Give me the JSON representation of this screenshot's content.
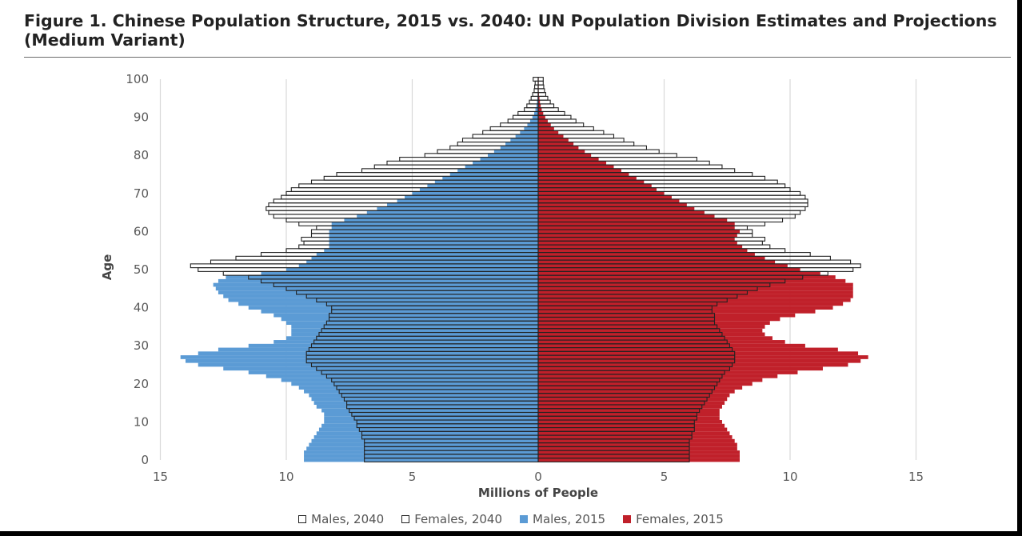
{
  "chart_data": {
    "type": "bar",
    "orientation": "horizontal",
    "layout": "population-pyramid",
    "title": "Figure 1. Chinese Population Structure, 2015 vs. 2040: UN Population Division Estimates and Projections (Medium Variant)",
    "xlabel": "Millions of People",
    "ylabel": "Age",
    "xlim": [
      -15,
      15
    ],
    "ylim": [
      0,
      100
    ],
    "x_ticks": [
      -15,
      -10,
      -5,
      0,
      5,
      10,
      15
    ],
    "x_tick_labels": [
      "15",
      "10",
      "5",
      "0",
      "5",
      "10",
      "15"
    ],
    "y_ticks": [
      0,
      10,
      20,
      30,
      40,
      50,
      60,
      70,
      80,
      90,
      100
    ],
    "y_tick_labels": [
      "0",
      "10",
      "20",
      "30",
      "40",
      "50",
      "60",
      "70",
      "80",
      "90",
      "100"
    ],
    "grid": "vertical",
    "legend_position": "bottom",
    "age": [
      0,
      1,
      2,
      3,
      4,
      5,
      6,
      7,
      8,
      9,
      10,
      11,
      12,
      13,
      14,
      15,
      16,
      17,
      18,
      19,
      20,
      21,
      22,
      23,
      24,
      25,
      26,
      27,
      28,
      29,
      30,
      31,
      32,
      33,
      34,
      35,
      36,
      37,
      38,
      39,
      40,
      41,
      42,
      43,
      44,
      45,
      46,
      47,
      48,
      49,
      50,
      51,
      52,
      53,
      54,
      55,
      56,
      57,
      58,
      59,
      60,
      61,
      62,
      63,
      64,
      65,
      66,
      67,
      68,
      69,
      70,
      71,
      72,
      73,
      74,
      75,
      76,
      77,
      78,
      79,
      80,
      81,
      82,
      83,
      84,
      85,
      86,
      87,
      88,
      89,
      90,
      91,
      92,
      93,
      94,
      95,
      96,
      97,
      98,
      99,
      100
    ],
    "series": [
      {
        "name": "Males, 2040",
        "side": "left",
        "style": "outline",
        "color": "#222222",
        "values": [
          6.9,
          6.9,
          6.9,
          6.9,
          6.9,
          6.9,
          7.0,
          7.0,
          7.1,
          7.2,
          7.2,
          7.3,
          7.4,
          7.5,
          7.6,
          7.6,
          7.7,
          7.8,
          7.9,
          8.0,
          8.1,
          8.2,
          8.4,
          8.6,
          8.8,
          9.0,
          9.2,
          9.2,
          9.2,
          9.1,
          9.0,
          8.9,
          8.8,
          8.7,
          8.6,
          8.5,
          8.4,
          8.3,
          8.3,
          8.2,
          8.2,
          8.4,
          8.8,
          9.2,
          9.6,
          10.0,
          10.5,
          11.0,
          11.5,
          12.5,
          13.5,
          13.8,
          13.0,
          12.0,
          11.0,
          10.0,
          9.5,
          9.3,
          9.4,
          9.0,
          9.0,
          8.8,
          9.5,
          10.0,
          10.5,
          10.7,
          10.8,
          10.7,
          10.5,
          10.2,
          10.0,
          9.8,
          9.5,
          9.0,
          8.5,
          8.0,
          7.0,
          6.5,
          6.0,
          5.5,
          4.5,
          4.0,
          3.5,
          3.2,
          3.0,
          2.6,
          2.2,
          1.9,
          1.5,
          1.2,
          1.0,
          0.8,
          0.55,
          0.45,
          0.35,
          0.28,
          0.22,
          0.16,
          0.14,
          0.12,
          0.2
        ]
      },
      {
        "name": "Females, 2040",
        "side": "right",
        "style": "outline",
        "color": "#222222",
        "values": [
          6.0,
          6.0,
          6.0,
          6.0,
          6.0,
          6.0,
          6.1,
          6.1,
          6.2,
          6.2,
          6.2,
          6.3,
          6.3,
          6.4,
          6.5,
          6.6,
          6.7,
          6.8,
          6.9,
          7.0,
          7.1,
          7.2,
          7.3,
          7.4,
          7.6,
          7.7,
          7.8,
          7.8,
          7.8,
          7.7,
          7.6,
          7.5,
          7.4,
          7.3,
          7.2,
          7.1,
          7.0,
          7.0,
          7.0,
          6.9,
          6.9,
          7.1,
          7.5,
          7.9,
          8.3,
          8.7,
          9.2,
          9.8,
          10.5,
          11.5,
          12.5,
          12.8,
          12.4,
          11.6,
          10.8,
          9.8,
          9.2,
          8.9,
          9.0,
          8.5,
          8.5,
          8.3,
          9.0,
          9.7,
          10.2,
          10.4,
          10.6,
          10.7,
          10.7,
          10.6,
          10.4,
          10.0,
          9.8,
          9.5,
          9.0,
          8.5,
          7.8,
          7.3,
          6.8,
          6.3,
          5.5,
          4.8,
          4.3,
          3.8,
          3.4,
          3.0,
          2.6,
          2.2,
          1.8,
          1.5,
          1.3,
          1.05,
          0.8,
          0.62,
          0.48,
          0.38,
          0.3,
          0.25,
          0.22,
          0.2,
          0.2
        ]
      },
      {
        "name": "Males, 2015",
        "side": "left",
        "style": "filled",
        "color": "#5b9bd5",
        "values": [
          9.3,
          9.3,
          9.3,
          9.2,
          9.1,
          9.0,
          8.9,
          8.8,
          8.7,
          8.6,
          8.5,
          8.5,
          8.5,
          8.6,
          8.8,
          8.9,
          9.0,
          9.1,
          9.3,
          9.5,
          9.8,
          10.2,
          10.8,
          11.5,
          12.5,
          13.5,
          14.0,
          14.2,
          13.5,
          12.7,
          11.5,
          10.5,
          10.0,
          9.8,
          9.8,
          9.8,
          10.0,
          10.2,
          10.5,
          11.0,
          11.5,
          11.9,
          12.3,
          12.5,
          12.7,
          12.8,
          12.9,
          12.7,
          12.4,
          11.0,
          10.0,
          9.5,
          9.2,
          9.0,
          8.8,
          8.5,
          8.3,
          8.3,
          8.3,
          8.3,
          8.3,
          8.2,
          8.2,
          7.7,
          7.2,
          6.8,
          6.4,
          6.0,
          5.6,
          5.3,
          5.0,
          4.7,
          4.4,
          4.1,
          3.8,
          3.5,
          3.2,
          2.9,
          2.6,
          2.3,
          2.0,
          1.75,
          1.5,
          1.3,
          1.1,
          0.9,
          0.72,
          0.56,
          0.43,
          0.32,
          0.23,
          0.16,
          0.11,
          0.07,
          0.05,
          0.03,
          0.02,
          0.01,
          0.01,
          0.01,
          0.01
        ]
      },
      {
        "name": "Females, 2015",
        "side": "right",
        "style": "filled",
        "color": "#c0202a",
        "values": [
          8.0,
          8.0,
          8.0,
          7.9,
          7.9,
          7.8,
          7.7,
          7.6,
          7.5,
          7.4,
          7.3,
          7.2,
          7.2,
          7.2,
          7.3,
          7.4,
          7.5,
          7.6,
          7.8,
          8.1,
          8.5,
          8.9,
          9.5,
          10.3,
          11.3,
          12.3,
          12.8,
          13.1,
          12.7,
          11.9,
          10.6,
          9.8,
          9.3,
          9.0,
          8.9,
          9.0,
          9.2,
          9.6,
          10.2,
          11.0,
          11.7,
          12.1,
          12.4,
          12.5,
          12.5,
          12.5,
          12.5,
          12.2,
          11.8,
          11.2,
          10.4,
          9.9,
          9.4,
          9.0,
          8.6,
          8.3,
          8.1,
          7.9,
          7.8,
          7.9,
          8.0,
          7.8,
          7.8,
          7.5,
          7.0,
          6.6,
          6.2,
          5.9,
          5.6,
          5.3,
          5.0,
          4.7,
          4.5,
          4.2,
          3.9,
          3.6,
          3.3,
          3.0,
          2.7,
          2.4,
          2.1,
          1.85,
          1.6,
          1.4,
          1.2,
          1.0,
          0.8,
          0.63,
          0.5,
          0.38,
          0.28,
          0.2,
          0.14,
          0.1,
          0.07,
          0.05,
          0.03,
          0.02,
          0.02,
          0.02,
          0.02
        ]
      }
    ]
  }
}
